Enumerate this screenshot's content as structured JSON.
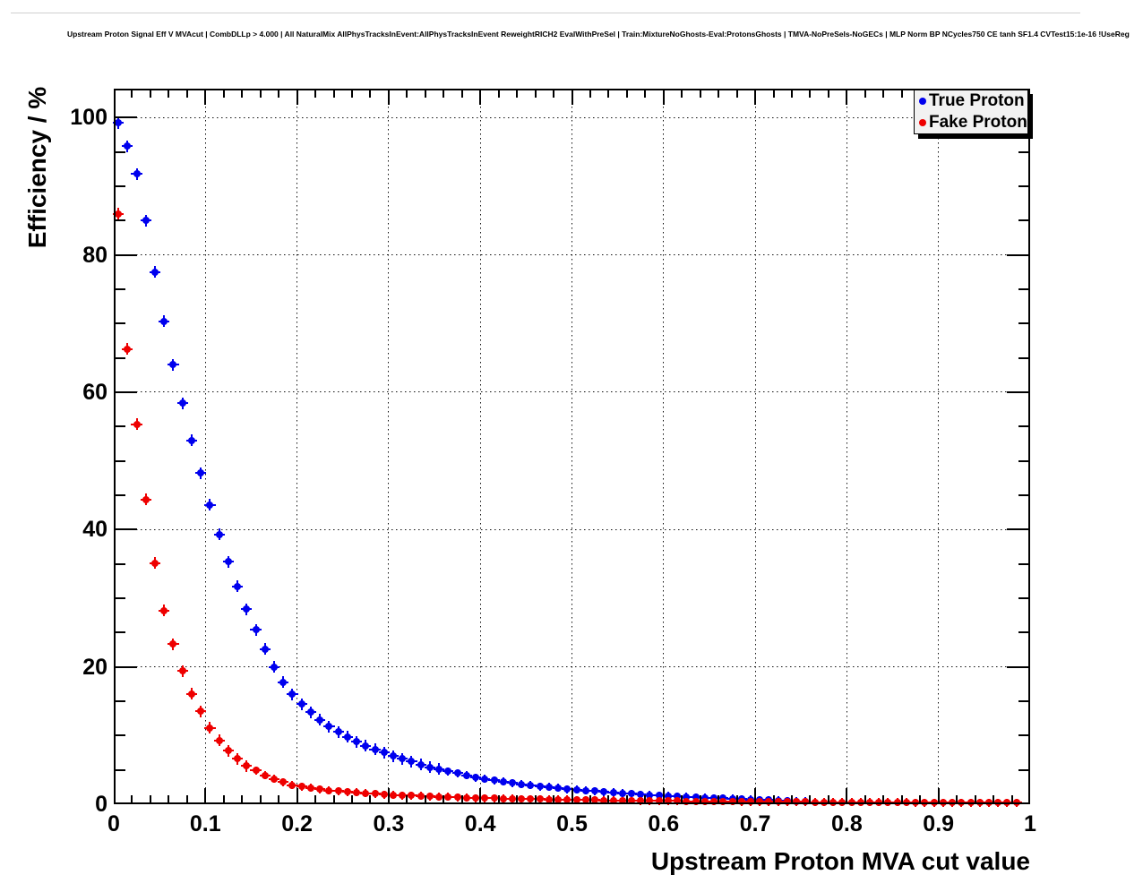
{
  "header": {
    "title": "Upstream Proton Signal Eff V MVAcut | CombDLLp > 4.000 | All NaturalMix AllPhysTracksInEvent:AllPhysTracksInEvent ReweightRICH2 EvalWithPreSel | Train:MixtureNoGhosts-Eval:ProtonsGhosts | TMVA-NoPreSels-NoGECs | MLP Norm BP NCycles750 CE tanh SF1.4 CVTest15:1e-16 !UseReg"
  },
  "colors": {
    "true_proton": "#0000ee",
    "fake_proton": "#ee0000",
    "axis": "#000000",
    "grid": "#111111",
    "legend_fill": "#f2f2f2",
    "legend_shadow": "#000000",
    "background": "#ffffff"
  },
  "chart_data": {
    "type": "scatter",
    "title": "Upstream Proton Signal Eff V MVAcut",
    "xlabel": "Upstream Proton MVA cut value",
    "ylabel": "Efficiency / %",
    "xlim": [
      0,
      1
    ],
    "ylim": [
      0,
      104.2
    ],
    "grid": true,
    "x_major_ticks": [
      0,
      0.1,
      0.2,
      0.3,
      0.4,
      0.5,
      0.6,
      0.7,
      0.8,
      0.9,
      1
    ],
    "x_tick_labels": [
      "0",
      "0.1",
      "0.2",
      "0.3",
      "0.4",
      "0.5",
      "0.6",
      "0.7",
      "0.8",
      "0.9",
      "1"
    ],
    "x_minor_step": 0.02,
    "y_major_ticks": [
      0,
      20,
      40,
      60,
      80,
      100
    ],
    "y_tick_labels": [
      "0",
      "20",
      "40",
      "60",
      "80",
      "100"
    ],
    "y_minor_step": 5,
    "x_err": 0.005,
    "legend": {
      "position": "top-right",
      "entries": [
        {
          "label": "True Proton",
          "color": "#0000ee"
        },
        {
          "label": "Fake Proton",
          "color": "#ee0000"
        }
      ]
    },
    "series": [
      {
        "name": "True Proton",
        "color": "#0000ee",
        "marker": "circle",
        "points": [
          [
            0.005,
            99.2
          ],
          [
            0.015,
            95.8
          ],
          [
            0.025,
            91.8
          ],
          [
            0.035,
            85.0
          ],
          [
            0.045,
            77.5
          ],
          [
            0.055,
            70.3
          ],
          [
            0.065,
            64.0
          ],
          [
            0.075,
            58.4
          ],
          [
            0.085,
            53.0
          ],
          [
            0.095,
            48.2
          ],
          [
            0.105,
            43.6
          ],
          [
            0.115,
            39.3
          ],
          [
            0.125,
            35.3
          ],
          [
            0.135,
            31.7
          ],
          [
            0.145,
            28.4
          ],
          [
            0.155,
            25.4
          ],
          [
            0.165,
            22.6
          ],
          [
            0.175,
            20.0
          ],
          [
            0.185,
            17.8
          ],
          [
            0.195,
            16.0
          ],
          [
            0.205,
            14.6
          ],
          [
            0.215,
            13.4
          ],
          [
            0.225,
            12.3
          ],
          [
            0.235,
            11.3
          ],
          [
            0.245,
            10.5
          ],
          [
            0.255,
            9.8
          ],
          [
            0.265,
            9.1
          ],
          [
            0.275,
            8.5
          ],
          [
            0.285,
            8.0
          ],
          [
            0.295,
            7.5
          ],
          [
            0.305,
            7.0
          ],
          [
            0.315,
            6.6
          ],
          [
            0.325,
            6.2
          ],
          [
            0.335,
            5.8
          ],
          [
            0.345,
            5.4
          ],
          [
            0.355,
            5.1
          ],
          [
            0.365,
            4.8
          ],
          [
            0.375,
            4.5
          ],
          [
            0.385,
            4.2
          ],
          [
            0.395,
            3.9
          ],
          [
            0.405,
            3.7
          ],
          [
            0.415,
            3.5
          ],
          [
            0.425,
            3.3
          ],
          [
            0.435,
            3.1
          ],
          [
            0.445,
            2.9
          ],
          [
            0.455,
            2.8
          ],
          [
            0.465,
            2.6
          ],
          [
            0.475,
            2.5
          ],
          [
            0.485,
            2.4
          ],
          [
            0.495,
            2.2
          ],
          [
            0.505,
            2.1
          ],
          [
            0.515,
            2.0
          ],
          [
            0.525,
            1.9
          ],
          [
            0.535,
            1.8
          ],
          [
            0.545,
            1.7
          ],
          [
            0.555,
            1.6
          ],
          [
            0.565,
            1.5
          ],
          [
            0.575,
            1.4
          ],
          [
            0.585,
            1.35
          ],
          [
            0.595,
            1.3
          ],
          [
            0.605,
            1.2
          ],
          [
            0.615,
            1.15
          ],
          [
            0.625,
            1.1
          ],
          [
            0.635,
            1.0
          ],
          [
            0.645,
            0.95
          ],
          [
            0.655,
            0.9
          ],
          [
            0.665,
            0.85
          ],
          [
            0.675,
            0.8
          ],
          [
            0.685,
            0.75
          ],
          [
            0.695,
            0.7
          ],
          [
            0.705,
            0.65
          ],
          [
            0.715,
            0.6
          ],
          [
            0.725,
            0.55
          ],
          [
            0.735,
            0.5
          ],
          [
            0.745,
            0.45
          ],
          [
            0.755,
            0.4
          ]
        ]
      },
      {
        "name": "Fake Proton",
        "color": "#ee0000",
        "marker": "circle",
        "points": [
          [
            0.005,
            86.0
          ],
          [
            0.015,
            66.3
          ],
          [
            0.025,
            55.3
          ],
          [
            0.035,
            44.4
          ],
          [
            0.045,
            35.1
          ],
          [
            0.055,
            28.2
          ],
          [
            0.065,
            23.3
          ],
          [
            0.075,
            19.4
          ],
          [
            0.085,
            16.1
          ],
          [
            0.095,
            13.5
          ],
          [
            0.105,
            11.1
          ],
          [
            0.115,
            9.3
          ],
          [
            0.125,
            7.8
          ],
          [
            0.135,
            6.6
          ],
          [
            0.145,
            5.6
          ],
          [
            0.155,
            4.9
          ],
          [
            0.165,
            4.2
          ],
          [
            0.175,
            3.7
          ],
          [
            0.185,
            3.2
          ],
          [
            0.195,
            2.8
          ],
          [
            0.205,
            2.6
          ],
          [
            0.215,
            2.4
          ],
          [
            0.225,
            2.2
          ],
          [
            0.235,
            2.0
          ],
          [
            0.245,
            1.9
          ],
          [
            0.255,
            1.8
          ],
          [
            0.265,
            1.7
          ],
          [
            0.275,
            1.6
          ],
          [
            0.285,
            1.5
          ],
          [
            0.295,
            1.4
          ],
          [
            0.305,
            1.35
          ],
          [
            0.315,
            1.3
          ],
          [
            0.325,
            1.25
          ],
          [
            0.335,
            1.2
          ],
          [
            0.345,
            1.15
          ],
          [
            0.355,
            1.1
          ],
          [
            0.365,
            1.05
          ],
          [
            0.375,
            1.0
          ],
          [
            0.385,
            0.95
          ],
          [
            0.395,
            0.9
          ],
          [
            0.405,
            0.88
          ],
          [
            0.415,
            0.85
          ],
          [
            0.425,
            0.82
          ],
          [
            0.435,
            0.8
          ],
          [
            0.445,
            0.77
          ],
          [
            0.455,
            0.75
          ],
          [
            0.465,
            0.72
          ],
          [
            0.475,
            0.7
          ],
          [
            0.485,
            0.68
          ],
          [
            0.495,
            0.66
          ],
          [
            0.505,
            0.64
          ],
          [
            0.515,
            0.62
          ],
          [
            0.525,
            0.6
          ],
          [
            0.535,
            0.58
          ],
          [
            0.545,
            0.56
          ],
          [
            0.555,
            0.55
          ],
          [
            0.565,
            0.53
          ],
          [
            0.575,
            0.52
          ],
          [
            0.585,
            0.5
          ],
          [
            0.595,
            0.49
          ],
          [
            0.605,
            0.48
          ],
          [
            0.615,
            0.46
          ],
          [
            0.625,
            0.45
          ],
          [
            0.635,
            0.44
          ],
          [
            0.645,
            0.43
          ],
          [
            0.655,
            0.42
          ],
          [
            0.665,
            0.41
          ],
          [
            0.675,
            0.4
          ],
          [
            0.685,
            0.39
          ],
          [
            0.695,
            0.38
          ],
          [
            0.705,
            0.37
          ],
          [
            0.715,
            0.36
          ],
          [
            0.725,
            0.35
          ],
          [
            0.735,
            0.35
          ],
          [
            0.745,
            0.34
          ],
          [
            0.755,
            0.33
          ],
          [
            0.765,
            0.32
          ],
          [
            0.775,
            0.32
          ],
          [
            0.785,
            0.31
          ],
          [
            0.795,
            0.3
          ],
          [
            0.805,
            0.3
          ],
          [
            0.815,
            0.29
          ],
          [
            0.825,
            0.29
          ],
          [
            0.835,
            0.28
          ],
          [
            0.845,
            0.28
          ],
          [
            0.855,
            0.27
          ],
          [
            0.865,
            0.27
          ],
          [
            0.875,
            0.26
          ],
          [
            0.885,
            0.26
          ],
          [
            0.895,
            0.25
          ],
          [
            0.905,
            0.25
          ],
          [
            0.915,
            0.24
          ],
          [
            0.925,
            0.24
          ],
          [
            0.935,
            0.23
          ],
          [
            0.945,
            0.23
          ],
          [
            0.955,
            0.22
          ],
          [
            0.965,
            0.22
          ],
          [
            0.975,
            0.21
          ],
          [
            0.985,
            0.21
          ]
        ]
      }
    ]
  }
}
